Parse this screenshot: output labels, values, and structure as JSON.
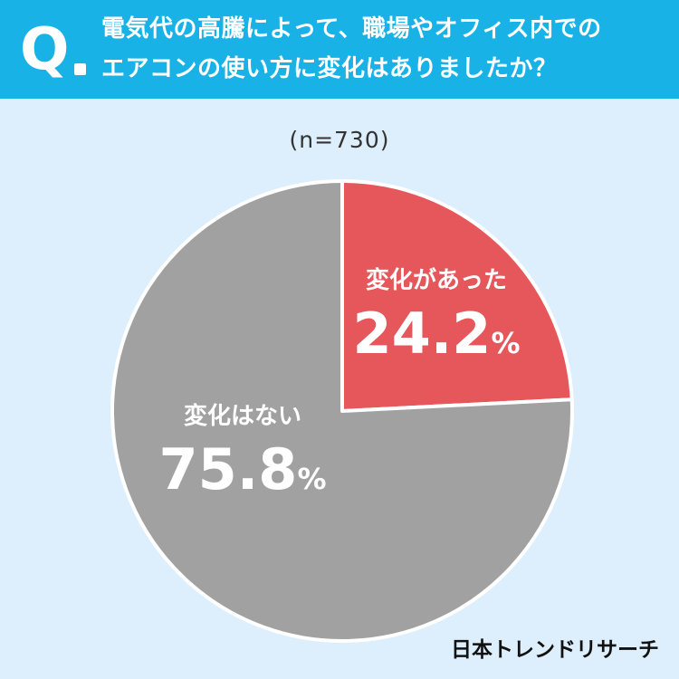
{
  "header": {
    "q_mark": "Q",
    "question_line1": "電気代の高騰によって、職場やオフィス内での",
    "question_line2": "エアコンの使い方に変化はありましたか？"
  },
  "sample_size": "(n=730)",
  "brand": "日本トレンドリサーチ",
  "chart_data": {
    "type": "pie",
    "slices": [
      {
        "label": "変化があった",
        "value": 24.2,
        "value_text": "24.2",
        "unit": "%",
        "color": "#e5575a"
      },
      {
        "label": "変化はない",
        "value": 75.8,
        "value_text": "75.8",
        "unit": "%",
        "color": "#a1a1a1"
      }
    ]
  },
  "colors": {
    "header_bg": "#19b2e6",
    "page_bg": "#ddeefc"
  }
}
